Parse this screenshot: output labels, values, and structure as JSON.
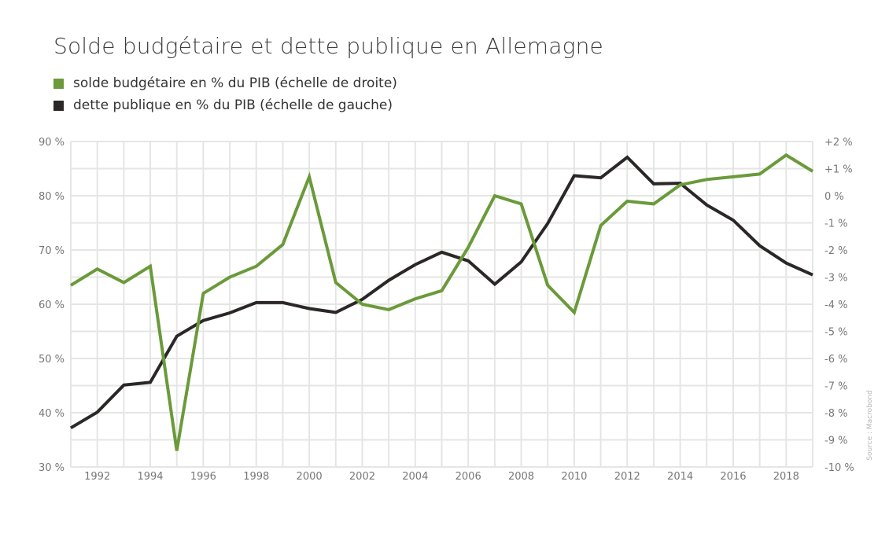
{
  "chart_data": {
    "type": "line",
    "title": "Solde budgétaire et dette publique en Allemagne",
    "x": [
      1991,
      1992,
      1993,
      1994,
      1995,
      1996,
      1997,
      1998,
      1999,
      2000,
      2001,
      2002,
      2003,
      2004,
      2005,
      2006,
      2007,
      2008,
      2009,
      2010,
      2011,
      2012,
      2013,
      2014,
      2015,
      2016,
      2017,
      2018,
      2019
    ],
    "x_tick_labels": [
      "1992",
      "1994",
      "1996",
      "1998",
      "2000",
      "2002",
      "2004",
      "2006",
      "2008",
      "2010",
      "2012",
      "2014",
      "2016",
      "2018"
    ],
    "x_tick_values": [
      1992,
      1994,
      1996,
      1998,
      2000,
      2002,
      2004,
      2006,
      2008,
      2010,
      2012,
      2014,
      2016,
      2018
    ],
    "y_left": {
      "ylim": [
        30,
        90
      ],
      "ticks": [
        "30 %",
        "40 %",
        "50 %",
        "60 %",
        "70 %",
        "80 %",
        "90 %"
      ],
      "tick_values": [
        30,
        40,
        50,
        60,
        70,
        80,
        90
      ]
    },
    "y_right": {
      "ylim": [
        -10,
        2
      ],
      "ticks": [
        "-10 %",
        "-9 %",
        "-8 %",
        "-7 %",
        "-6 %",
        "-5 %",
        "-4 %",
        "-3 %",
        "-2 %",
        "-1 %",
        "0 %",
        "+1 %",
        "+2 %"
      ],
      "tick_values": [
        -10,
        -9,
        -8,
        -7,
        -6,
        -5,
        -4,
        -3,
        -2,
        -1,
        0,
        1,
        2
      ]
    },
    "series": [
      {
        "name": "solde budgétaire en % du PIB (échelle de droite)",
        "axis": "right",
        "color": "#6a9a3a",
        "values": [
          -3.3,
          -2.7,
          -3.2,
          -2.6,
          -9.4,
          -3.6,
          -3.0,
          -2.6,
          -1.8,
          0.7,
          -3.2,
          -4.0,
          -4.2,
          -3.8,
          -3.5,
          -1.9,
          0.0,
          -0.3,
          -3.3,
          -4.3,
          -1.1,
          -0.2,
          -0.3,
          0.4,
          0.6,
          0.7,
          0.8,
          1.5,
          0.9
        ]
      },
      {
        "name": "dette publique en % du PIB (échelle de gauche)",
        "axis": "left",
        "color": "#2b2727",
        "values": [
          37.2,
          40.1,
          45.1,
          45.6,
          54.1,
          57.0,
          58.4,
          60.3,
          60.3,
          59.2,
          58.5,
          60.9,
          64.4,
          67.3,
          69.6,
          68.0,
          63.7,
          67.8,
          74.9,
          83.7,
          83.3,
          87.1,
          82.2,
          82.3,
          78.3,
          75.5,
          70.8,
          67.6,
          65.4
        ]
      }
    ],
    "grid": true,
    "legend_position": "top-left",
    "source": "Source : Macrobond"
  }
}
